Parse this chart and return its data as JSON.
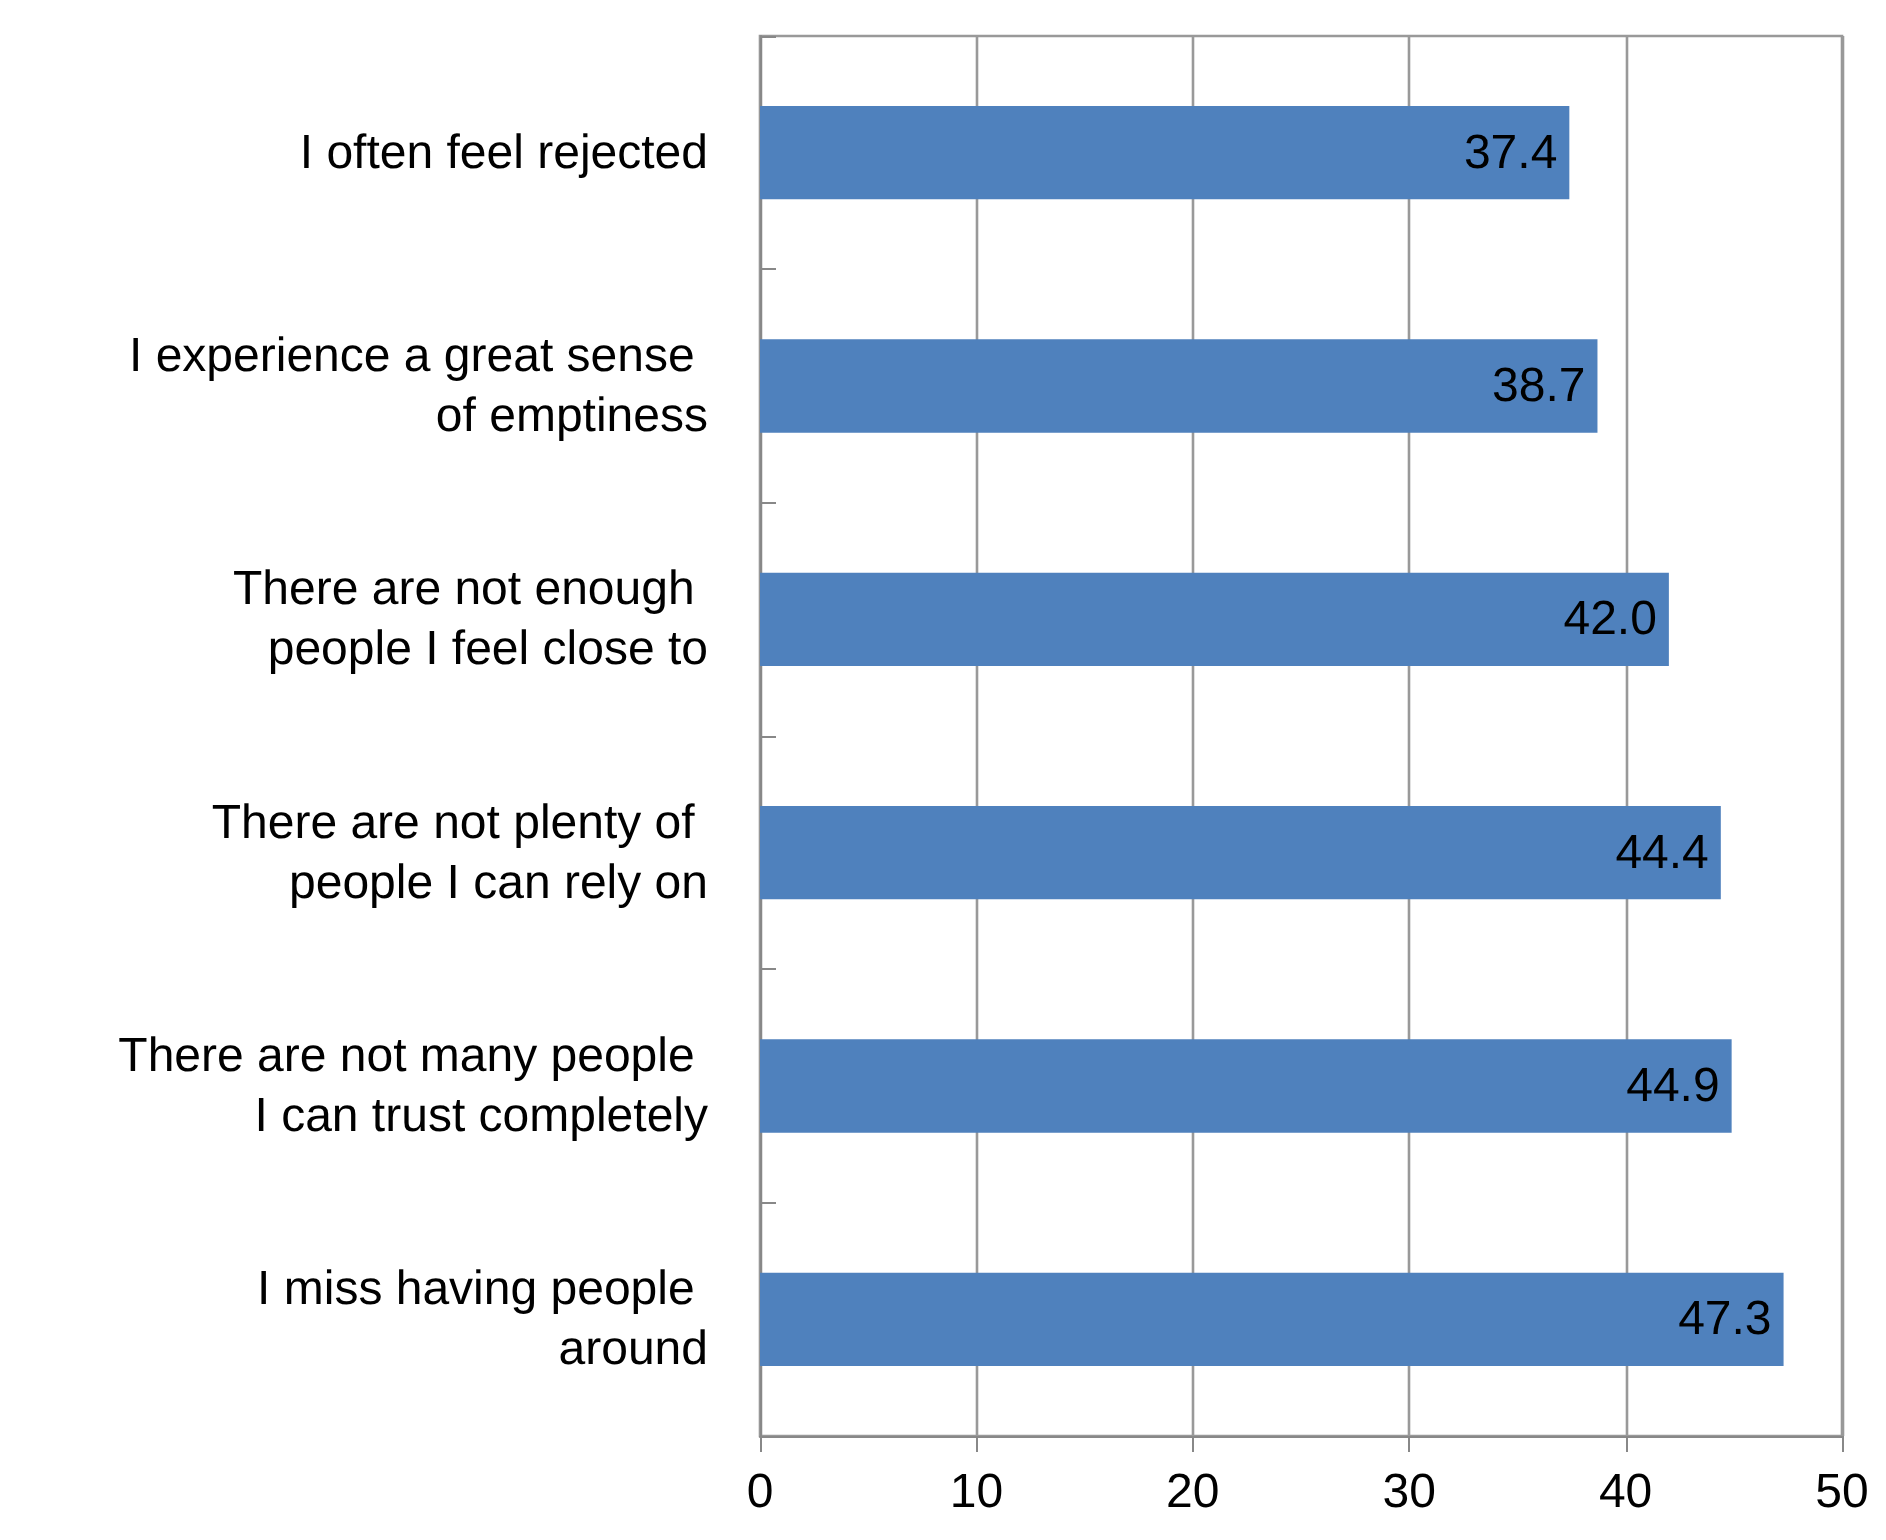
{
  "chart_data": {
    "type": "bar",
    "orientation": "horizontal",
    "categories": [
      "I often feel rejected",
      "I experience a great sense of emptiness",
      "There are not enough people I feel close to",
      "There are not plenty of people I can rely on",
      "There are not many people I can trust completely",
      "I miss having people around"
    ],
    "values": [
      37.4,
      38.7,
      42.0,
      44.4,
      44.9,
      47.3
    ],
    "value_labels": [
      "37.4",
      "38.7",
      "42.0",
      "44.4",
      "44.9",
      "47.3"
    ],
    "color": "#4f81bd",
    "xlim": [
      0,
      50
    ],
    "xticks": [
      0,
      10,
      20,
      30,
      40,
      50
    ],
    "grid": "x"
  }
}
